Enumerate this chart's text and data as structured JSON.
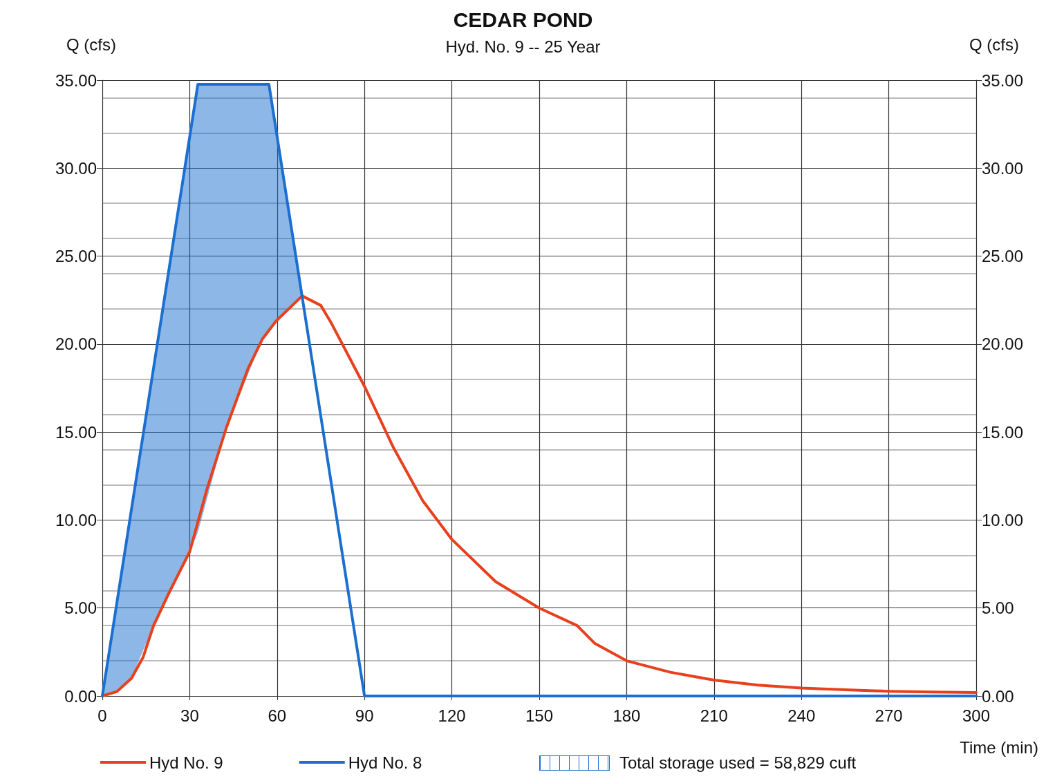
{
  "chart_data": {
    "type": "line",
    "title": "CEDAR POND",
    "subtitle": "Hyd. No. 9 -- 25 Year",
    "xlabel": "Time (min)",
    "ylabel": "Q (cfs)",
    "y2label": "Q (cfs)",
    "xlim": [
      0,
      300
    ],
    "xticks": [
      0,
      30,
      60,
      90,
      120,
      150,
      180,
      210,
      240,
      270,
      300
    ],
    "ylim": [
      0,
      35
    ],
    "yticks": [
      {
        "value": 0,
        "label": "0.00"
      },
      {
        "value": 5,
        "label": "5.00"
      },
      {
        "value": 10,
        "label": "10.00"
      },
      {
        "value": 15,
        "label": "15.00"
      },
      {
        "value": 20,
        "label": "20.00"
      },
      {
        "value": 25,
        "label": "25.00"
      },
      {
        "value": 30,
        "label": "30.00"
      },
      {
        "value": 35,
        "label": "35.00"
      }
    ],
    "y2lim": [
      0,
      35
    ],
    "y2ticks": [
      {
        "value": 0,
        "label": "0.00"
      },
      {
        "value": 5,
        "label": "5.00"
      },
      {
        "value": 10,
        "label": "10.00"
      },
      {
        "value": 15,
        "label": "15.00"
      },
      {
        "value": 20,
        "label": "20.00"
      },
      {
        "value": 25,
        "label": "25.00"
      },
      {
        "value": 30,
        "label": "30.00"
      },
      {
        "value": 35,
        "label": "35.00"
      }
    ],
    "grid": true,
    "legend": "bottom",
    "marker": "none",
    "line_style": "solid",
    "series": [
      {
        "name": "Hyd No. 9",
        "color": "#e8401c",
        "x": [
          0,
          5,
          10,
          14,
          17.6,
          23,
          30,
          36,
          42.7,
          50,
          55,
          59.6,
          68.6,
          75,
          78.6,
          90,
          100,
          110,
          120,
          135,
          150,
          163,
          169,
          180,
          195,
          210,
          225,
          240,
          255,
          270,
          285,
          300
        ],
        "values": [
          0,
          0.25,
          1.0,
          2.2,
          4.0,
          5.9,
          8.2,
          11.8,
          15.3,
          18.6,
          20.3,
          21.3,
          22.74,
          22.2,
          21.2,
          17.6,
          14.1,
          11.1,
          8.9,
          6.5,
          5.0,
          4.0,
          3.0,
          2.0,
          1.35,
          0.9,
          0.62,
          0.45,
          0.35,
          0.27,
          0.23,
          0.2
        ]
      },
      {
        "name": "Hyd No. 8",
        "color": "#1a6fd0",
        "x": [
          0,
          5,
          10,
          17.6,
          23,
          30,
          32.8,
          42.7,
          55,
          57.2,
          59.6,
          68.5,
          90,
          300
        ],
        "values": [
          0,
          5.3,
          10.6,
          18.65,
          24.37,
          31.79,
          34.76,
          34.76,
          34.76,
          34.76,
          32.22,
          22.8,
          0,
          0
        ],
        "lower": [
          0,
          0.25,
          1.0,
          4.0,
          5.9,
          8.2,
          9.3,
          15.3,
          20.3,
          20.9,
          21.3,
          22.8,
          null,
          null
        ],
        "upper": [
          0,
          5.3,
          10.6,
          18.65,
          24.37,
          31.79,
          34.76,
          34.76,
          34.76,
          34.76,
          32.22,
          22.8,
          null,
          null
        ]
      }
    ],
    "annotations": [
      "Total storage used = 58,829 cuft"
    ]
  }
}
